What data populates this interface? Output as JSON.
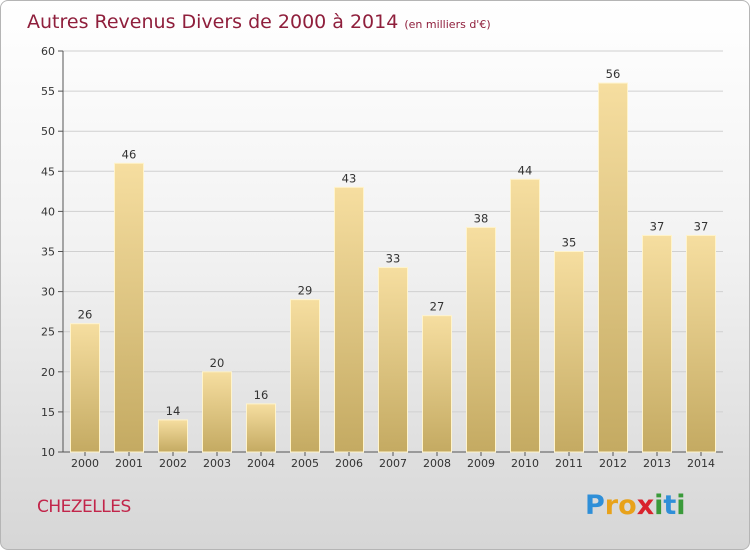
{
  "title": "Autres Revenus Divers de 2000 à 2014",
  "subtitle": "(en milliers d'€)",
  "commune": "CHEZELLES",
  "logo": {
    "text": "Proxiti",
    "letters": [
      {
        "ch": "P",
        "color": "#2f8fd8"
      },
      {
        "ch": "r",
        "color": "#e8a21a"
      },
      {
        "ch": "o",
        "color": "#e8a21a"
      },
      {
        "ch": "x",
        "color": "#d9232d"
      },
      {
        "ch": "i",
        "color": "#3a9a3a"
      },
      {
        "ch": "t",
        "color": "#2f8fd8"
      },
      {
        "ch": "i",
        "color": "#3a9a3a"
      }
    ]
  },
  "colors": {
    "title": "#8f1f3c",
    "commune": "#c2254a",
    "bar_top": "#f6dea0",
    "bar_bottom": "#c4aa62"
  },
  "chart_data": {
    "type": "bar",
    "categories": [
      "2000",
      "2001",
      "2002",
      "2003",
      "2004",
      "2005",
      "2006",
      "2007",
      "2008",
      "2009",
      "2010",
      "2011",
      "2012",
      "2013",
      "2014"
    ],
    "values": [
      26,
      46,
      14,
      20,
      16,
      29,
      43,
      33,
      27,
      38,
      44,
      35,
      56,
      37,
      37
    ],
    "ylim": [
      10,
      60
    ],
    "yticks": [
      10,
      15,
      20,
      25,
      30,
      35,
      40,
      45,
      50,
      55,
      60
    ],
    "grid": true,
    "legend": false
  }
}
